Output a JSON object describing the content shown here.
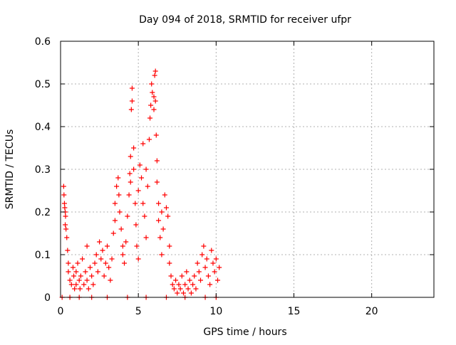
{
  "chart_data": {
    "type": "scatter",
    "title": "Day 094 of 2018, SRMTID for receiver ufpr",
    "xlabel": "GPS time / hours",
    "ylabel": "SRMTID / TECUs",
    "xlim": [
      0,
      24
    ],
    "ylim": [
      0,
      0.6
    ],
    "x_ticks": [
      "0",
      "5",
      "10",
      "15",
      "20"
    ],
    "x_tick_values": [
      0,
      5,
      10,
      15,
      20
    ],
    "y_ticks": [
      "0",
      "0.1",
      "0.2",
      "0.3",
      "0.4",
      "0.5",
      "0.6"
    ],
    "y_tick_values": [
      0,
      0.1,
      0.2,
      0.3,
      0.4,
      0.5,
      0.6
    ],
    "grid": true,
    "marker": "+",
    "color": "#ff0000",
    "series": [
      {
        "name": "SRMTID",
        "points": [
          [
            0.2,
            0.26
          ],
          [
            0.22,
            0.24
          ],
          [
            0.25,
            0.22
          ],
          [
            0.27,
            0.21
          ],
          [
            0.3,
            0.2
          ],
          [
            0.32,
            0.19
          ],
          [
            0.3,
            0.17
          ],
          [
            0.35,
            0.16
          ],
          [
            0.4,
            0.14
          ],
          [
            0.45,
            0.11
          ],
          [
            0.5,
            0.08
          ],
          [
            0.5,
            0.06
          ],
          [
            0.6,
            0.04
          ],
          [
            0.7,
            0.03
          ],
          [
            0.8,
            0.07
          ],
          [
            0.85,
            0.05
          ],
          [
            0.9,
            0.02
          ],
          [
            1.0,
            0.06
          ],
          [
            1.0,
            0.03
          ],
          [
            1.1,
            0.08
          ],
          [
            1.2,
            0.04
          ],
          [
            1.25,
            0.02
          ],
          [
            1.3,
            0.05
          ],
          [
            1.4,
            0.09
          ],
          [
            1.5,
            0.03
          ],
          [
            1.6,
            0.06
          ],
          [
            1.7,
            0.12
          ],
          [
            1.7,
            0.04
          ],
          [
            1.8,
            0.02
          ],
          [
            1.9,
            0.07
          ],
          [
            2.0,
            0.05
          ],
          [
            2.1,
            0.03
          ],
          [
            2.2,
            0.08
          ],
          [
            2.3,
            0.1
          ],
          [
            2.4,
            0.06
          ],
          [
            2.5,
            0.13
          ],
          [
            2.6,
            0.09
          ],
          [
            2.7,
            0.11
          ],
          [
            2.8,
            0.05
          ],
          [
            2.9,
            0.08
          ],
          [
            3.0,
            0.12
          ],
          [
            3.1,
            0.07
          ],
          [
            3.2,
            0.04
          ],
          [
            3.3,
            0.09
          ],
          [
            3.4,
            0.15
          ],
          [
            3.5,
            0.22
          ],
          [
            3.5,
            0.18
          ],
          [
            3.6,
            0.26
          ],
          [
            3.7,
            0.28
          ],
          [
            3.75,
            0.24
          ],
          [
            3.8,
            0.2
          ],
          [
            3.9,
            0.16
          ],
          [
            4.0,
            0.12
          ],
          [
            4.0,
            0.1
          ],
          [
            4.1,
            0.08
          ],
          [
            4.2,
            0.13
          ],
          [
            4.3,
            0.19
          ],
          [
            4.4,
            0.24
          ],
          [
            4.45,
            0.29
          ],
          [
            4.5,
            0.33
          ],
          [
            4.5,
            0.27
          ],
          [
            4.55,
            0.44
          ],
          [
            4.6,
            0.46
          ],
          [
            4.6,
            0.49
          ],
          [
            4.7,
            0.35
          ],
          [
            4.7,
            0.3
          ],
          [
            4.8,
            0.22
          ],
          [
            4.85,
            0.17
          ],
          [
            4.9,
            0.12
          ],
          [
            5.0,
            0.09
          ],
          [
            5.0,
            0.25
          ],
          [
            5.1,
            0.31
          ],
          [
            5.2,
            0.28
          ],
          [
            5.3,
            0.22
          ],
          [
            5.3,
            0.36
          ],
          [
            5.4,
            0.19
          ],
          [
            5.5,
            0.14
          ],
          [
            5.5,
            0.3
          ],
          [
            5.6,
            0.26
          ],
          [
            5.7,
            0.37
          ],
          [
            5.75,
            0.42
          ],
          [
            5.8,
            0.45
          ],
          [
            5.85,
            0.5
          ],
          [
            5.9,
            0.48
          ],
          [
            6.0,
            0.47
          ],
          [
            6.0,
            0.44
          ],
          [
            6.05,
            0.52
          ],
          [
            6.1,
            0.53
          ],
          [
            6.1,
            0.46
          ],
          [
            6.15,
            0.38
          ],
          [
            6.2,
            0.32
          ],
          [
            6.2,
            0.27
          ],
          [
            6.3,
            0.22
          ],
          [
            6.3,
            0.18
          ],
          [
            6.4,
            0.14
          ],
          [
            6.5,
            0.1
          ],
          [
            6.5,
            0.2
          ],
          [
            6.6,
            0.16
          ],
          [
            6.7,
            0.24
          ],
          [
            6.8,
            0.21
          ],
          [
            6.9,
            0.19
          ],
          [
            7.0,
            0.12
          ],
          [
            7.0,
            0.08
          ],
          [
            7.1,
            0.05
          ],
          [
            7.2,
            0.03
          ],
          [
            7.3,
            0.02
          ],
          [
            7.4,
            0.04
          ],
          [
            7.5,
            0.01
          ],
          [
            7.6,
            0.03
          ],
          [
            7.7,
            0.02
          ],
          [
            7.8,
            0.05
          ],
          [
            7.9,
            0.01
          ],
          [
            8.0,
            0.03
          ],
          [
            8.1,
            0.06
          ],
          [
            8.2,
            0.02
          ],
          [
            8.3,
            0.04
          ],
          [
            8.4,
            0.01
          ],
          [
            8.5,
            0.03
          ],
          [
            8.6,
            0.05
          ],
          [
            8.7,
            0.02
          ],
          [
            8.8,
            0.08
          ],
          [
            8.9,
            0.06
          ],
          [
            9.0,
            0.04
          ],
          [
            9.1,
            0.1
          ],
          [
            9.2,
            0.12
          ],
          [
            9.3,
            0.07
          ],
          [
            9.4,
            0.09
          ],
          [
            9.5,
            0.05
          ],
          [
            9.6,
            0.03
          ],
          [
            9.7,
            0.11
          ],
          [
            9.8,
            0.08
          ],
          [
            9.9,
            0.06
          ],
          [
            10.0,
            0.09
          ],
          [
            10.1,
            0.04
          ],
          [
            10.2,
            0.07
          ],
          [
            0.1,
            0.0
          ],
          [
            0.6,
            0.0
          ],
          [
            1.2,
            0.0
          ],
          [
            2.0,
            0.0
          ],
          [
            3.0,
            0.0
          ],
          [
            4.3,
            0.0
          ],
          [
            5.5,
            0.0
          ],
          [
            6.8,
            0.0
          ],
          [
            8.0,
            0.0
          ],
          [
            9.3,
            0.0
          ],
          [
            10.0,
            0.0
          ]
        ]
      }
    ]
  }
}
